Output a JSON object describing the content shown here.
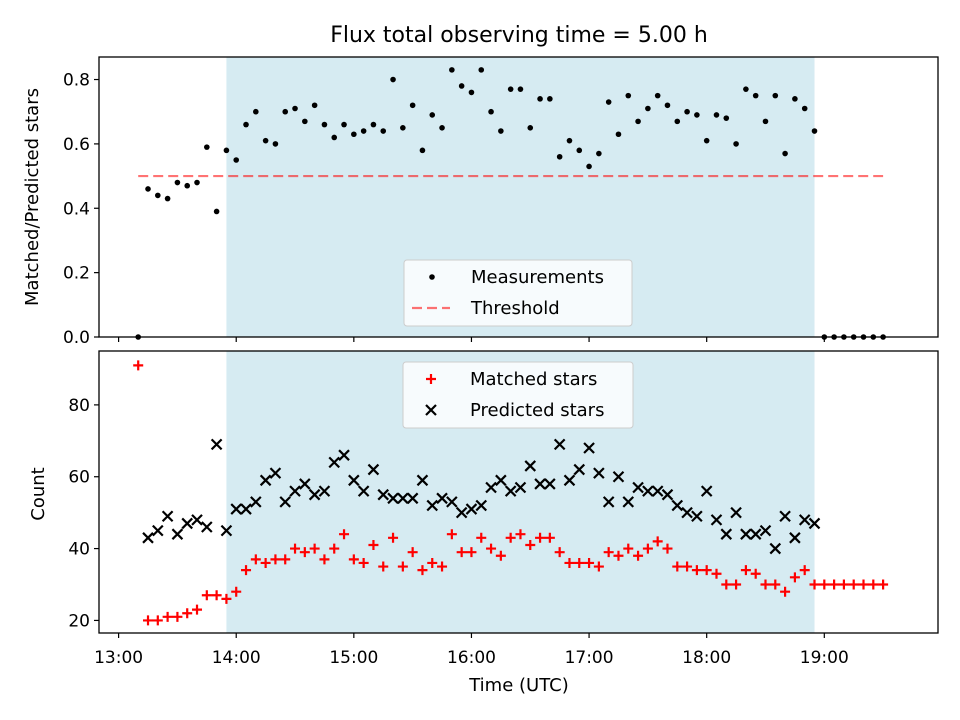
{
  "title": "Flux total observing time = 5.00 h",
  "colors": {
    "span": "#add8e6",
    "span_opacity": 0.5,
    "measurements": "#000000",
    "threshold": "#ff0000",
    "matched": "#ff0000",
    "predicted": "#000000"
  },
  "chart_data": [
    {
      "type": "scatter",
      "ylabel": "Matched/Predicted stars",
      "ylim": [
        0,
        0.87
      ],
      "yticks": [
        0.0,
        0.2,
        0.4,
        0.6,
        0.8
      ],
      "ytick_labels": [
        "0.0",
        "0.2",
        "0.4",
        "0.6",
        "0.8"
      ],
      "xlim": [
        "12:50",
        "19:58"
      ],
      "shaded_span": [
        "13:55",
        "18:55"
      ],
      "legend": {
        "position": "lower center",
        "entries": [
          "Measurements",
          "Threshold"
        ]
      },
      "threshold": {
        "name": "Threshold",
        "value": 0.5,
        "x_range": [
          "13:10",
          "19:30"
        ],
        "style": "dashed"
      },
      "series": [
        {
          "name": "Measurements",
          "points": [
            [
              "13:10",
              0.0
            ],
            [
              "13:15",
              0.46
            ],
            [
              "13:20",
              0.44
            ],
            [
              "13:25",
              0.43
            ],
            [
              "13:30",
              0.48
            ],
            [
              "13:35",
              0.47
            ],
            [
              "13:40",
              0.48
            ],
            [
              "13:45",
              0.59
            ],
            [
              "13:50",
              0.39
            ],
            [
              "13:55",
              0.58
            ],
            [
              "14:00",
              0.55
            ],
            [
              "14:05",
              0.66
            ],
            [
              "14:10",
              0.7
            ],
            [
              "14:15",
              0.61
            ],
            [
              "14:20",
              0.6
            ],
            [
              "14:25",
              0.7
            ],
            [
              "14:30",
              0.71
            ],
            [
              "14:35",
              0.67
            ],
            [
              "14:40",
              0.72
            ],
            [
              "14:45",
              0.66
            ],
            [
              "14:50",
              0.62
            ],
            [
              "14:55",
              0.66
            ],
            [
              "15:00",
              0.63
            ],
            [
              "15:05",
              0.64
            ],
            [
              "15:10",
              0.66
            ],
            [
              "15:15",
              0.64
            ],
            [
              "15:20",
              0.8
            ],
            [
              "15:25",
              0.65
            ],
            [
              "15:30",
              0.72
            ],
            [
              "15:35",
              0.58
            ],
            [
              "15:40",
              0.69
            ],
            [
              "15:45",
              0.65
            ],
            [
              "15:50",
              0.83
            ],
            [
              "15:55",
              0.78
            ],
            [
              "16:00",
              0.76
            ],
            [
              "16:05",
              0.83
            ],
            [
              "16:10",
              0.7
            ],
            [
              "16:15",
              0.64
            ],
            [
              "16:20",
              0.77
            ],
            [
              "16:25",
              0.77
            ],
            [
              "16:30",
              0.65
            ],
            [
              "16:35",
              0.74
            ],
            [
              "16:40",
              0.74
            ],
            [
              "16:45",
              0.56
            ],
            [
              "16:50",
              0.61
            ],
            [
              "16:55",
              0.58
            ],
            [
              "17:00",
              0.53
            ],
            [
              "17:05",
              0.57
            ],
            [
              "17:10",
              0.73
            ],
            [
              "17:15",
              0.63
            ],
            [
              "17:20",
              0.75
            ],
            [
              "17:25",
              0.67
            ],
            [
              "17:30",
              0.71
            ],
            [
              "17:35",
              0.75
            ],
            [
              "17:40",
              0.72
            ],
            [
              "17:45",
              0.67
            ],
            [
              "17:50",
              0.7
            ],
            [
              "17:55",
              0.69
            ],
            [
              "18:00",
              0.61
            ],
            [
              "18:05",
              0.69
            ],
            [
              "18:10",
              0.68
            ],
            [
              "18:15",
              0.6
            ],
            [
              "18:20",
              0.77
            ],
            [
              "18:25",
              0.75
            ],
            [
              "18:30",
              0.67
            ],
            [
              "18:35",
              0.75
            ],
            [
              "18:40",
              0.57
            ],
            [
              "18:45",
              0.74
            ],
            [
              "18:50",
              0.71
            ],
            [
              "18:55",
              0.64
            ],
            [
              "19:00",
              0.0
            ],
            [
              "19:05",
              0.0
            ],
            [
              "19:10",
              0.0
            ],
            [
              "19:15",
              0.0
            ],
            [
              "19:20",
              0.0
            ],
            [
              "19:25",
              0.0
            ],
            [
              "19:30",
              0.0
            ]
          ]
        }
      ]
    },
    {
      "type": "scatter",
      "ylabel": "Count",
      "xlabel": "Time (UTC)",
      "ylim": [
        16.5,
        95
      ],
      "yticks": [
        20,
        40,
        60,
        80
      ],
      "ytick_labels": [
        "20",
        "40",
        "60",
        "80"
      ],
      "xlim": [
        "12:50",
        "19:58"
      ],
      "xticks": [
        "13:00",
        "14:00",
        "15:00",
        "16:00",
        "17:00",
        "18:00",
        "19:00"
      ],
      "xtick_labels": [
        "13:00",
        "14:00",
        "15:00",
        "16:00",
        "17:00",
        "18:00",
        "19:00"
      ],
      "shaded_span": [
        "13:55",
        "18:55"
      ],
      "legend": {
        "position": "upper center",
        "entries": [
          "Matched stars",
          "Predicted stars"
        ]
      },
      "series": [
        {
          "name": "Matched stars",
          "marker": "+",
          "points": [
            [
              "13:10",
              91
            ],
            [
              "13:15",
              20
            ],
            [
              "13:20",
              20
            ],
            [
              "13:25",
              21
            ],
            [
              "13:30",
              21
            ],
            [
              "13:35",
              22
            ],
            [
              "13:40",
              23
            ],
            [
              "13:45",
              27
            ],
            [
              "13:50",
              27
            ],
            [
              "13:55",
              26
            ],
            [
              "14:00",
              28
            ],
            [
              "14:05",
              34
            ],
            [
              "14:10",
              37
            ],
            [
              "14:15",
              36
            ],
            [
              "14:20",
              37
            ],
            [
              "14:25",
              37
            ],
            [
              "14:30",
              40
            ],
            [
              "14:35",
              39
            ],
            [
              "14:40",
              40
            ],
            [
              "14:45",
              37
            ],
            [
              "14:50",
              40
            ],
            [
              "14:55",
              44
            ],
            [
              "15:00",
              37
            ],
            [
              "15:05",
              36
            ],
            [
              "15:10",
              41
            ],
            [
              "15:15",
              35
            ],
            [
              "15:20",
              43
            ],
            [
              "15:25",
              35
            ],
            [
              "15:30",
              39
            ],
            [
              "15:35",
              34
            ],
            [
              "15:40",
              36
            ],
            [
              "15:45",
              35
            ],
            [
              "15:50",
              44
            ],
            [
              "15:55",
              39
            ],
            [
              "16:00",
              39
            ],
            [
              "16:05",
              43
            ],
            [
              "16:10",
              40
            ],
            [
              "16:15",
              38
            ],
            [
              "16:20",
              43
            ],
            [
              "16:25",
              44
            ],
            [
              "16:30",
              41
            ],
            [
              "16:35",
              43
            ],
            [
              "16:40",
              43
            ],
            [
              "16:45",
              39
            ],
            [
              "16:50",
              36
            ],
            [
              "16:55",
              36
            ],
            [
              "17:00",
              36
            ],
            [
              "17:05",
              35
            ],
            [
              "17:10",
              39
            ],
            [
              "17:15",
              38
            ],
            [
              "17:20",
              40
            ],
            [
              "17:25",
              38
            ],
            [
              "17:30",
              40
            ],
            [
              "17:35",
              42
            ],
            [
              "17:40",
              40
            ],
            [
              "17:45",
              35
            ],
            [
              "17:50",
              35
            ],
            [
              "17:55",
              34
            ],
            [
              "18:00",
              34
            ],
            [
              "18:05",
              33
            ],
            [
              "18:10",
              30
            ],
            [
              "18:15",
              30
            ],
            [
              "18:20",
              34
            ],
            [
              "18:25",
              33
            ],
            [
              "18:30",
              30
            ],
            [
              "18:35",
              30
            ],
            [
              "18:40",
              28
            ],
            [
              "18:45",
              32
            ],
            [
              "18:50",
              34
            ],
            [
              "18:55",
              30
            ],
            [
              "19:00",
              30
            ],
            [
              "19:05",
              30
            ],
            [
              "19:10",
              30
            ],
            [
              "19:15",
              30
            ],
            [
              "19:20",
              30
            ],
            [
              "19:25",
              30
            ],
            [
              "19:30",
              30
            ]
          ]
        },
        {
          "name": "Predicted stars",
          "marker": "x",
          "points": [
            [
              "13:15",
              43
            ],
            [
              "13:20",
              45
            ],
            [
              "13:25",
              49
            ],
            [
              "13:30",
              44
            ],
            [
              "13:35",
              47
            ],
            [
              "13:40",
              48
            ],
            [
              "13:45",
              46
            ],
            [
              "13:50",
              69
            ],
            [
              "13:55",
              45
            ],
            [
              "14:00",
              51
            ],
            [
              "14:05",
              51
            ],
            [
              "14:10",
              53
            ],
            [
              "14:15",
              59
            ],
            [
              "14:20",
              61
            ],
            [
              "14:25",
              53
            ],
            [
              "14:30",
              56
            ],
            [
              "14:35",
              58
            ],
            [
              "14:40",
              55
            ],
            [
              "14:45",
              56
            ],
            [
              "14:50",
              64
            ],
            [
              "14:55",
              66
            ],
            [
              "15:00",
              59
            ],
            [
              "15:05",
              56
            ],
            [
              "15:10",
              62
            ],
            [
              "15:15",
              55
            ],
            [
              "15:20",
              54
            ],
            [
              "15:25",
              54
            ],
            [
              "15:30",
              54
            ],
            [
              "15:35",
              59
            ],
            [
              "15:40",
              52
            ],
            [
              "15:45",
              54
            ],
            [
              "15:50",
              53
            ],
            [
              "15:55",
              50
            ],
            [
              "16:00",
              51
            ],
            [
              "16:05",
              52
            ],
            [
              "16:10",
              57
            ],
            [
              "16:15",
              59
            ],
            [
              "16:20",
              56
            ],
            [
              "16:25",
              57
            ],
            [
              "16:30",
              63
            ],
            [
              "16:35",
              58
            ],
            [
              "16:40",
              58
            ],
            [
              "16:45",
              69
            ],
            [
              "16:50",
              59
            ],
            [
              "16:55",
              62
            ],
            [
              "17:00",
              68
            ],
            [
              "17:05",
              61
            ],
            [
              "17:10",
              53
            ],
            [
              "17:15",
              60
            ],
            [
              "17:20",
              53
            ],
            [
              "17:25",
              57
            ],
            [
              "17:30",
              56
            ],
            [
              "17:35",
              56
            ],
            [
              "17:40",
              55
            ],
            [
              "17:45",
              52
            ],
            [
              "17:50",
              50
            ],
            [
              "17:55",
              49
            ],
            [
              "18:00",
              56
            ],
            [
              "18:05",
              48
            ],
            [
              "18:10",
              44
            ],
            [
              "18:15",
              50
            ],
            [
              "18:20",
              44
            ],
            [
              "18:25",
              44
            ],
            [
              "18:30",
              45
            ],
            [
              "18:35",
              40
            ],
            [
              "18:40",
              49
            ],
            [
              "18:45",
              43
            ],
            [
              "18:50",
              48
            ],
            [
              "18:55",
              47
            ]
          ]
        }
      ]
    }
  ]
}
